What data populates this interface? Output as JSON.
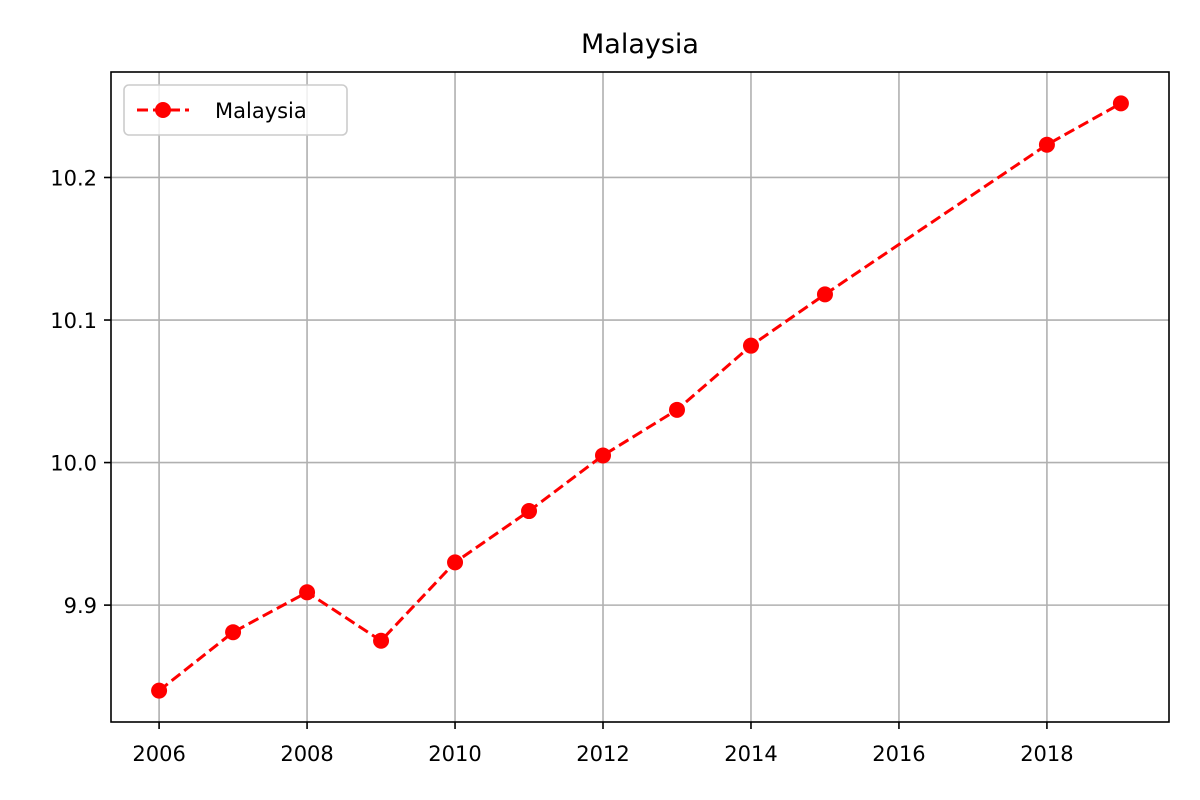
{
  "chart_data": {
    "type": "line",
    "title": "Malaysia",
    "xlabel": "",
    "ylabel": "",
    "xlim": [
      2005.35,
      2019.65
    ],
    "ylim": [
      9.818,
      10.274
    ],
    "xticks": [
      2006,
      2008,
      2010,
      2012,
      2014,
      2016,
      2018
    ],
    "xtick_labels": [
      "2006",
      "2008",
      "2010",
      "2012",
      "2014",
      "2016",
      "2018"
    ],
    "yticks": [
      9.9,
      10.0,
      10.1,
      10.2
    ],
    "ytick_labels": [
      "9.9",
      "10.0",
      "10.1",
      "10.2"
    ],
    "grid": true,
    "legend": {
      "placement": "top-left",
      "entries": [
        "Malaysia"
      ]
    },
    "series": [
      {
        "name": "Malaysia",
        "color": "#ff0000",
        "line_style": "dashed",
        "marker": "circle",
        "points": [
          {
            "x": 2006,
            "y": 9.84
          },
          {
            "x": 2007,
            "y": 9.881
          },
          {
            "x": 2008,
            "y": 9.909
          },
          {
            "x": 2009,
            "y": 9.875
          },
          {
            "x": 2010,
            "y": 9.93
          },
          {
            "x": 2011,
            "y": 9.966
          },
          {
            "x": 2012,
            "y": 10.005
          },
          {
            "x": 2013,
            "y": 10.037
          },
          {
            "x": 2014,
            "y": 10.082
          },
          {
            "x": 2015,
            "y": 10.118
          },
          {
            "x": 2018,
            "y": 10.223
          },
          {
            "x": 2019,
            "y": 10.252
          }
        ]
      }
    ]
  }
}
